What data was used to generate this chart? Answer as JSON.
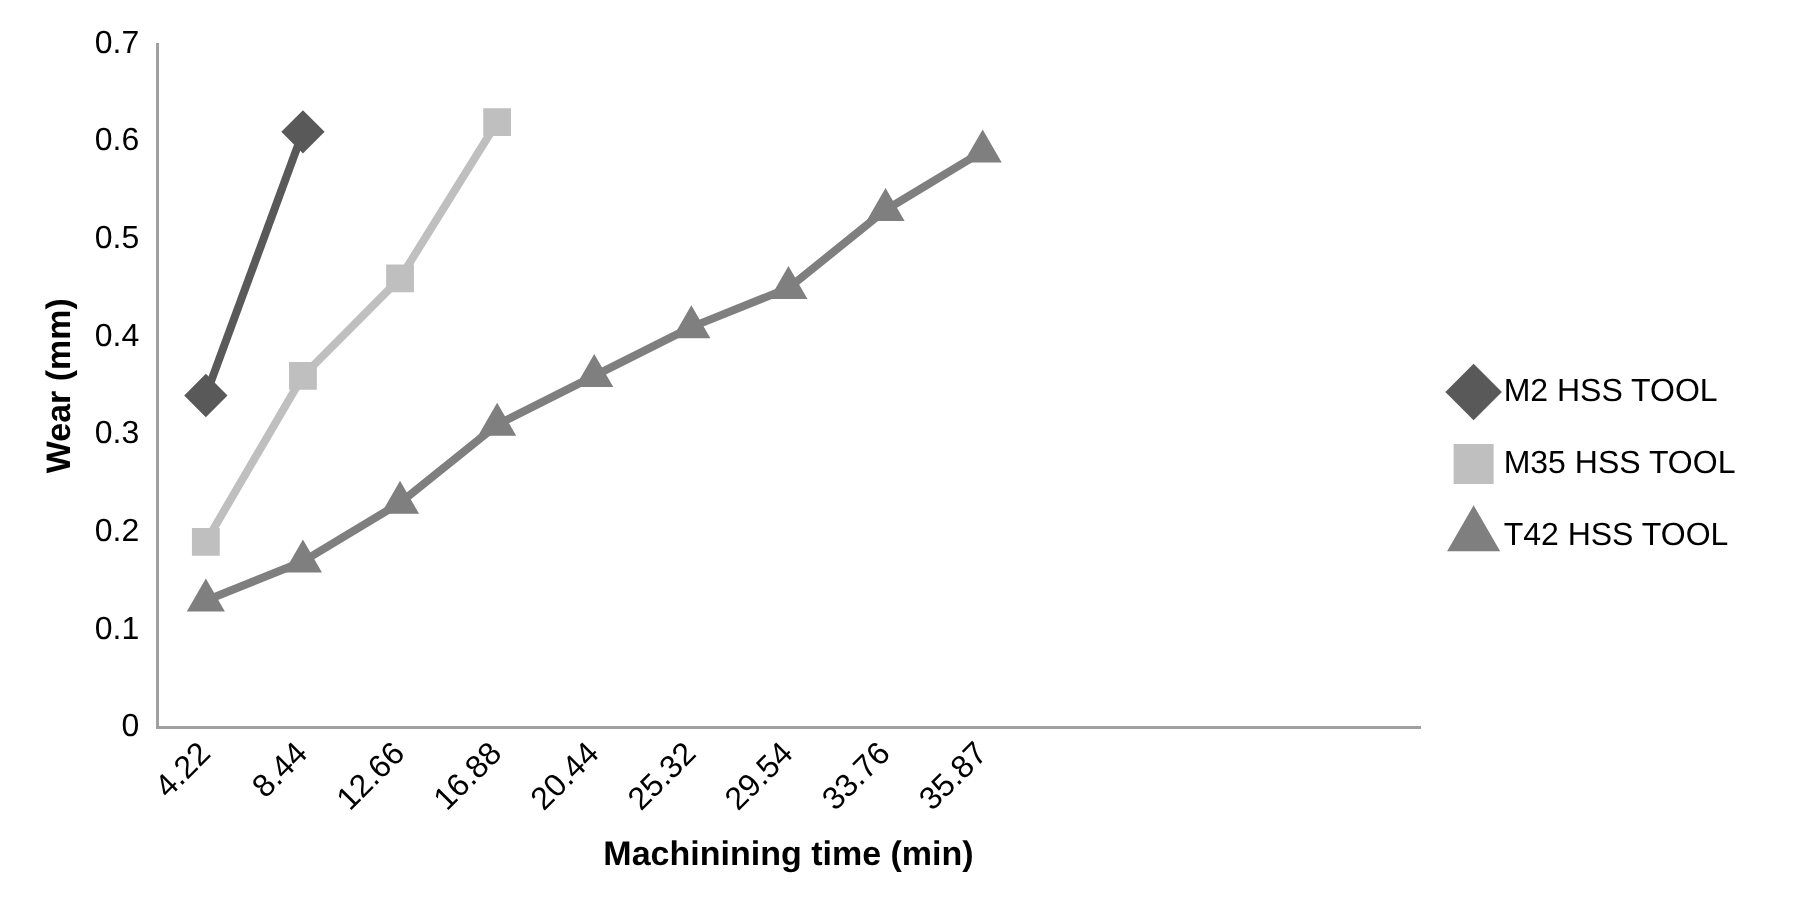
{
  "chart_data": {
    "type": "line",
    "xlabel": "Machinining time (min)",
    "ylabel": "Wear (mm)",
    "categories": [
      "4.22",
      "8.44",
      "12.66",
      "16.88",
      "20.44",
      "25.32",
      "29.54",
      "33.76",
      "35.87",
      null,
      null,
      null,
      null
    ],
    "series": [
      {
        "name": "M2 HSS TOOL",
        "color": "#595959",
        "marker": "diamond",
        "values": [
          0.34,
          0.61,
          null,
          null,
          null,
          null,
          null,
          null,
          null,
          null,
          null,
          null,
          null
        ]
      },
      {
        "name": "M35 HSS TOOL",
        "color": "#bfbfbf",
        "marker": "square",
        "values": [
          0.19,
          0.36,
          0.46,
          0.62,
          null,
          null,
          null,
          null,
          null,
          null,
          null,
          null,
          null
        ]
      },
      {
        "name": "T42 HSS TOOL",
        "color": "#7f7f7f",
        "marker": "triangle",
        "values": [
          0.13,
          0.17,
          0.23,
          0.31,
          0.36,
          0.41,
          0.45,
          0.53,
          0.59,
          null,
          null,
          null,
          null
        ]
      }
    ],
    "ylim": [
      0,
      0.7
    ],
    "yticks": [
      0,
      0.1,
      0.2,
      0.3,
      0.4,
      0.5,
      0.6,
      0.7
    ],
    "grid": false,
    "legend": "right",
    "line_style": "solid"
  }
}
